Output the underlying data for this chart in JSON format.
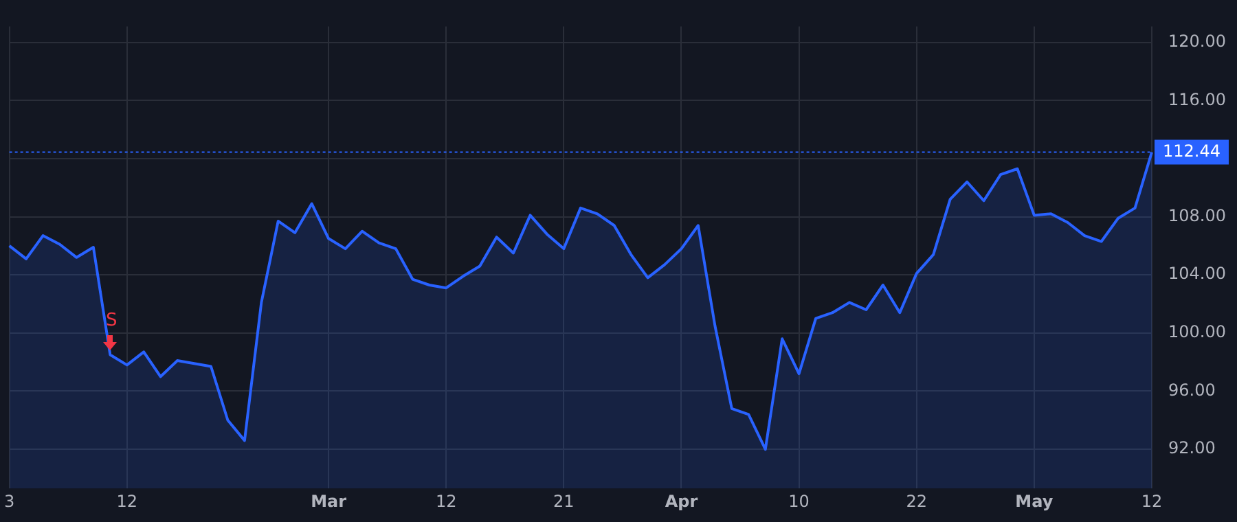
{
  "chart_data": {
    "type": "area",
    "categories": [
      "3",
      null,
      null,
      null,
      null,
      null,
      null,
      "12",
      null,
      null,
      null,
      null,
      null,
      null,
      null,
      null,
      null,
      null,
      null,
      "Mar",
      null,
      null,
      null,
      null,
      null,
      null,
      "12",
      null,
      null,
      null,
      null,
      null,
      null,
      "21",
      null,
      null,
      null,
      null,
      null,
      null,
      "Apr",
      null,
      null,
      null,
      null,
      null,
      null,
      "10",
      null,
      null,
      null,
      null,
      null,
      null,
      "22",
      null,
      null,
      null,
      null,
      null,
      null,
      "May",
      null,
      null,
      null,
      null,
      null,
      null,
      "12"
    ],
    "series": [
      {
        "color": "#2962ff",
        "values": [
          106.0,
          105.1,
          106.7,
          106.1,
          105.2,
          105.9,
          98.5,
          97.8,
          98.7,
          97.0,
          98.1,
          97.9,
          97.7,
          94.0,
          92.6,
          102.1,
          107.7,
          106.9,
          108.9,
          106.5,
          105.8,
          107.0,
          106.2,
          105.8,
          103.7,
          103.3,
          103.1,
          103.9,
          104.6,
          106.6,
          105.5,
          108.1,
          106.8,
          105.8,
          108.6,
          108.2,
          107.4,
          105.4,
          103.8,
          104.7,
          105.8,
          107.4,
          100.5,
          94.8,
          94.4,
          92.0,
          99.6,
          97.2,
          101.0,
          101.4,
          102.1,
          101.6,
          103.3,
          101.4,
          104.1,
          105.4,
          109.2,
          110.4,
          109.1,
          110.9,
          111.3,
          108.1,
          108.2,
          107.6,
          106.7,
          106.3,
          107.9,
          108.6,
          112.44
        ]
      }
    ],
    "ylim": [
      89.3,
      121.1
    ],
    "yticks": [
      {
        "value": 92,
        "label": "92.00"
      },
      {
        "value": 96,
        "label": "96.00"
      },
      {
        "value": 100,
        "label": "100.00"
      },
      {
        "value": 104,
        "label": "104.00"
      },
      {
        "value": 108,
        "label": "108.00"
      },
      {
        "value": 112,
        "label": null
      },
      {
        "value": 116,
        "label": "116.00"
      },
      {
        "value": 120,
        "label": "120.00"
      }
    ],
    "grid": true,
    "legend": false,
    "marker": "none",
    "line_style": "solid",
    "ref_lines": [
      {
        "axis": "y",
        "value": 112.44,
        "label": "112.44",
        "color": "#2962ff",
        "line_style": "dotted"
      }
    ],
    "annotations": [
      {
        "text": "S",
        "y": 98.5
      }
    ]
  }
}
